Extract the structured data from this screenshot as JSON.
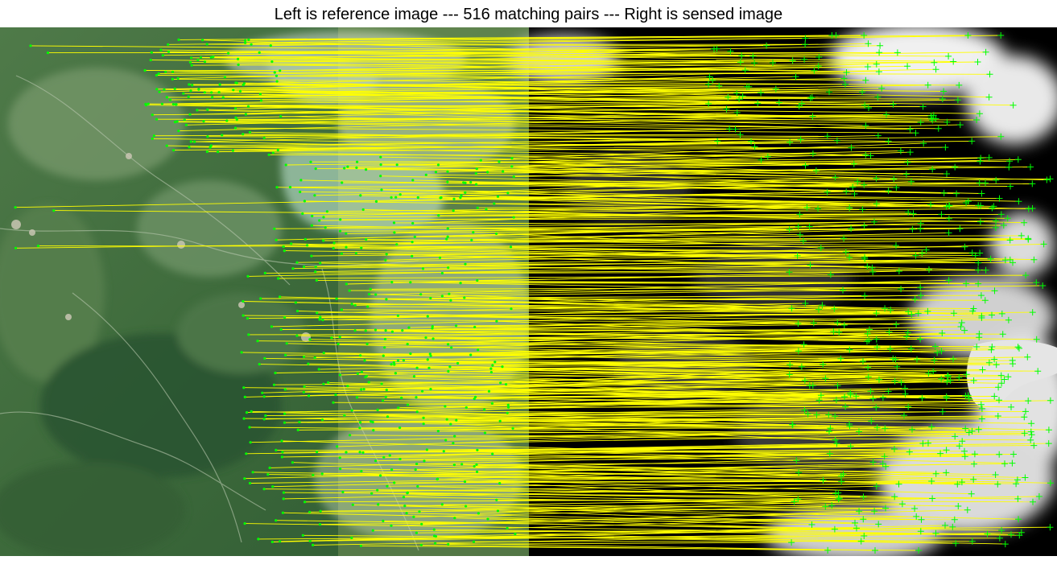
{
  "title": "Left is reference image --- 516 matching pairs --- Right is sensed image",
  "colors": {
    "match_line": "#ffff00",
    "reference_point": "#00ff00",
    "sensed_point": "#00ff00",
    "overlay": "#ffff66",
    "sensed_background": "#000000",
    "cloud": "#e6e6e6",
    "vegetation": "#3f6b3a",
    "lake": "#8fb59a"
  },
  "panels": {
    "reference": {
      "icon": "satellite-optical-image"
    },
    "sensed": {
      "icon": "sar-grayscale-image"
    }
  },
  "matches": {
    "count": 516,
    "marker_reference": "dot",
    "marker_sensed": "plus"
  }
}
